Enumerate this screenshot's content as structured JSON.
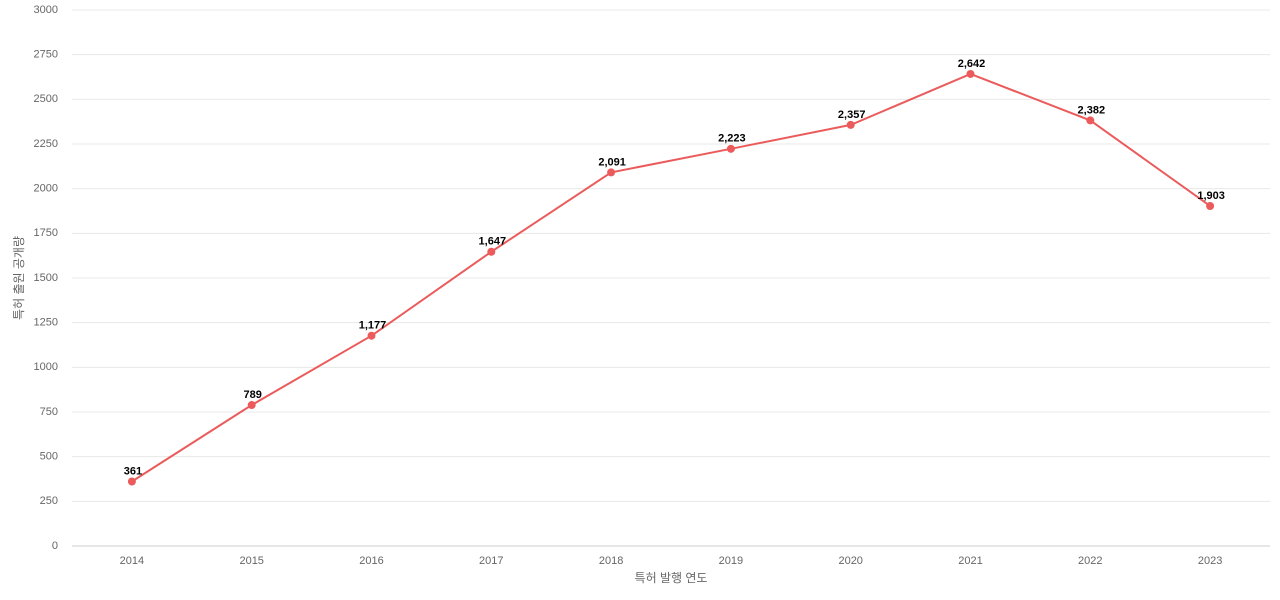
{
  "chart_data": {
    "type": "line",
    "x_label": "특허 발행 연도",
    "y_label": "특허 출원 공개량",
    "categories": [
      "2014",
      "2015",
      "2016",
      "2017",
      "2018",
      "2019",
      "2020",
      "2021",
      "2022",
      "2023"
    ],
    "series": [
      {
        "name": "특허 출원 공개량",
        "color": "#eb5b5b",
        "values": [
          361,
          789,
          1177,
          1647,
          2091,
          2223,
          2357,
          2642,
          2382,
          1903
        ],
        "value_labels": [
          "361",
          "789",
          "1,177",
          "1,647",
          "2,091",
          "2,223",
          "2,357",
          "2,642",
          "2,382",
          "1,903"
        ]
      }
    ],
    "ylim": [
      0,
      3000
    ],
    "yticks": [
      0,
      250,
      500,
      750,
      1000,
      1250,
      1500,
      1750,
      2000,
      2250,
      2500,
      2750,
      3000
    ],
    "grid": true
  }
}
